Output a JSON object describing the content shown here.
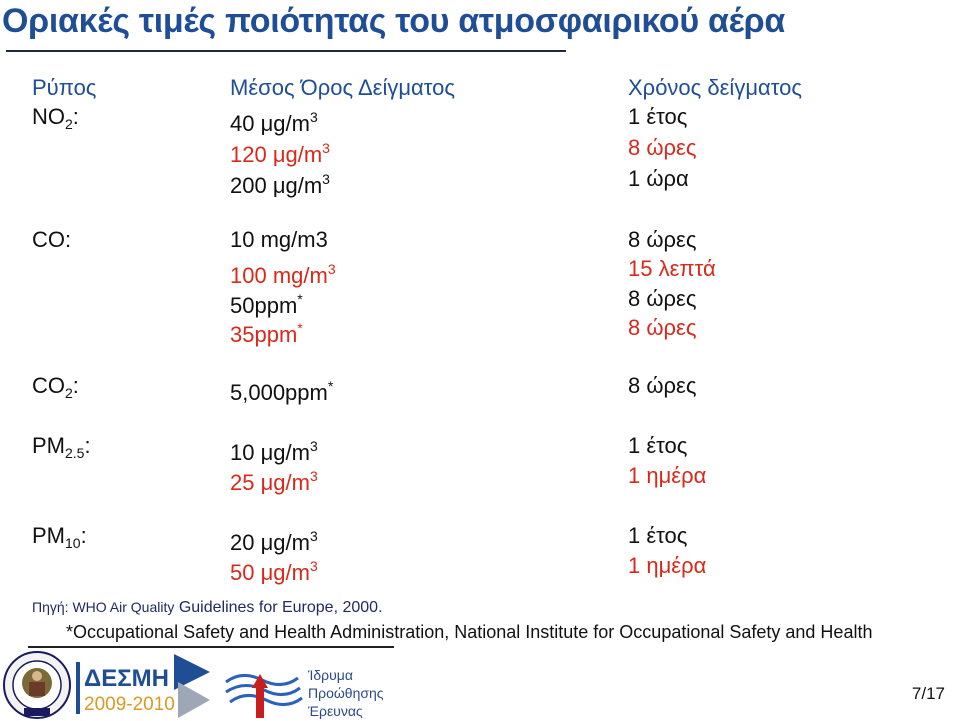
{
  "title": "Οριακές τιμές ποιότητας του ατμοσφαιρικού αέρα",
  "headers": {
    "pollutant": "Ρύπος",
    "average": "Μέσος Όρος Δείγματος",
    "time": "Χρόνος δείγματος"
  },
  "rows": {
    "no2": {
      "name": "NO",
      "sub": "2",
      "colon": ":",
      "v1": "40 μg/m",
      "v1_sup": "3",
      "t1": "1 έτος",
      "v2": "120 μg/m",
      "v2_sup": "3",
      "t2": "8 ώρες",
      "v3": "200 μg/m",
      "v3_sup": "3",
      "t3": "1 ώρα"
    },
    "co": {
      "name": "CO:",
      "v1": "10 mg/m3",
      "t1": "8 ώρες",
      "v2": "100 mg/m",
      "v2_sup": "3",
      "t2": "15 λεπτά",
      "v3": "50ppm",
      "v3_sup": "*",
      "t3": "8 ώρες",
      "v4": "35ppm",
      "v4_sup": "*",
      "t4": "8 ώρες"
    },
    "co2": {
      "name": "CO",
      "sub": "2",
      "colon": ":",
      "v1": "5,000ppm",
      "v1_sup": "*",
      "t1": "8 ώρες"
    },
    "pm25": {
      "name": "PM",
      "sub": "2.5",
      "colon": ":",
      "v1": "10 μg/m",
      "v1_sup": "3",
      "t1": "1 έτος",
      "v2": "25 μg/m",
      "v2_sup": "3",
      "t2": "1 ημέρα"
    },
    "pm10": {
      "name": "PM",
      "sub": "10",
      "colon": ":",
      "v1": "20 μg/m",
      "v1_sup": "3",
      "t1": "1 έτος",
      "v2": "50 μg/m",
      "v2_sup": "3",
      "t2": "1 ημέρα"
    }
  },
  "source": {
    "label": "Πηγή: WHO Air Quality",
    "rest": " Guidelines for Europe, 2000."
  },
  "footnote": "*Occupational Safety and Health Administration, National Institute for Occupational Safety and Health",
  "logos": {
    "desmi_text": "ΔΕΣΜΗ",
    "desmi_years": "2009-2010",
    "ipe": [
      "Ίδρυμα",
      "Προώθησης",
      "Έρευνας"
    ]
  },
  "page": "7/17",
  "colors": {
    "title": "#1f4e96",
    "red": "#d8291b",
    "black": "#111111"
  }
}
